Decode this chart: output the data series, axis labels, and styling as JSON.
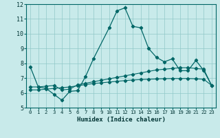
{
  "xlabel": "Humidex (Indice chaleur)",
  "xlim": [
    -0.5,
    23.5
  ],
  "ylim": [
    5,
    12
  ],
  "yticks": [
    5,
    6,
    7,
    8,
    9,
    10,
    11,
    12
  ],
  "xtick_labels": [
    "0",
    "1",
    "2",
    "3",
    "4",
    "5",
    "6",
    "7",
    "8",
    "9",
    "10",
    "11",
    "12",
    "13",
    "14",
    "15",
    "16",
    "17",
    "18",
    "19",
    "20",
    "21",
    "22",
    "23"
  ],
  "background_color": "#c8eaea",
  "grid_color": "#90c8c8",
  "line_color": "#006666",
  "line1_x": [
    0,
    1,
    2,
    3,
    4,
    5,
    6,
    7,
    8,
    10,
    11,
    12,
    13,
    14,
    15,
    16,
    17,
    18,
    19,
    20,
    21,
    22,
    23
  ],
  "line1_y": [
    7.75,
    6.4,
    6.3,
    5.9,
    5.5,
    6.1,
    6.15,
    7.1,
    8.3,
    10.4,
    11.55,
    11.75,
    10.5,
    10.4,
    9.0,
    8.4,
    8.1,
    8.3,
    7.5,
    7.5,
    8.2,
    7.5,
    6.5
  ],
  "line2_x": [
    0,
    1,
    2,
    3,
    4,
    5,
    6,
    7,
    8,
    9,
    10,
    11,
    12,
    13,
    14,
    15,
    16,
    17,
    18,
    19,
    20,
    21,
    22,
    23
  ],
  "line2_y": [
    6.4,
    6.4,
    6.45,
    6.5,
    6.2,
    6.25,
    6.55,
    6.65,
    6.75,
    6.85,
    6.95,
    7.05,
    7.15,
    7.25,
    7.35,
    7.45,
    7.55,
    7.6,
    7.65,
    7.7,
    7.7,
    7.65,
    7.6,
    6.5
  ],
  "line3_x": [
    0,
    1,
    2,
    3,
    4,
    5,
    6,
    7,
    8,
    9,
    10,
    11,
    12,
    13,
    14,
    15,
    16,
    17,
    18,
    19,
    20,
    21,
    22,
    23
  ],
  "line3_y": [
    6.2,
    6.2,
    6.25,
    6.3,
    6.35,
    6.4,
    6.48,
    6.56,
    6.63,
    6.68,
    6.73,
    6.78,
    6.83,
    6.87,
    6.9,
    6.92,
    6.94,
    6.96,
    6.97,
    6.97,
    6.97,
    6.95,
    6.92,
    6.5
  ]
}
